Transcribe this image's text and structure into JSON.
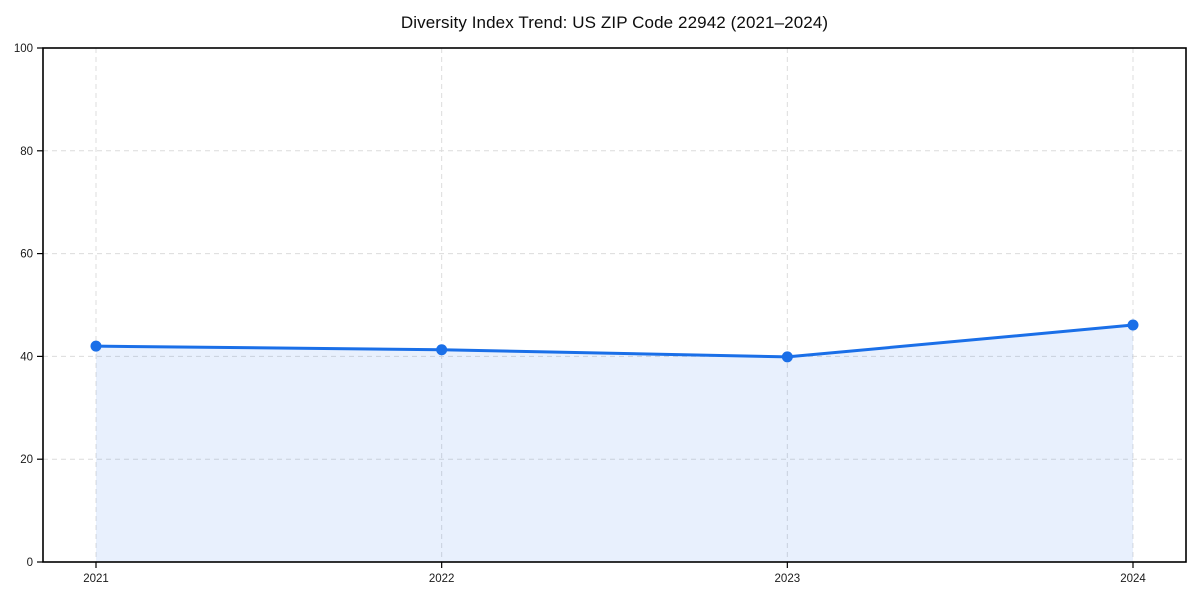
{
  "chart_data": {
    "type": "line",
    "title": "Diversity Index Trend: US ZIP Code 22942 (2021–2024)",
    "xlabel": "",
    "ylabel": "",
    "categories": [
      "2021",
      "2022",
      "2023",
      "2024"
    ],
    "series": [
      {
        "name": "Diversity Index",
        "values": [
          42,
          41.3,
          39.9,
          46.1
        ]
      }
    ],
    "ylim": [
      0,
      100
    ],
    "yticks": [
      0,
      20,
      40,
      60,
      80,
      100
    ],
    "grid": true,
    "grid_style": "dashed",
    "legend_position": "none",
    "colors": {
      "line": "#1a6fe8",
      "marker": "#1a6fe8",
      "fill": "#1a6fe8",
      "fill_opacity": 0.1,
      "grid": "#dcdcdc",
      "axis_border": "#000000",
      "tick_label": "#1a1a1a",
      "title": "#0d0d0d",
      "background": "#ffffff"
    }
  }
}
